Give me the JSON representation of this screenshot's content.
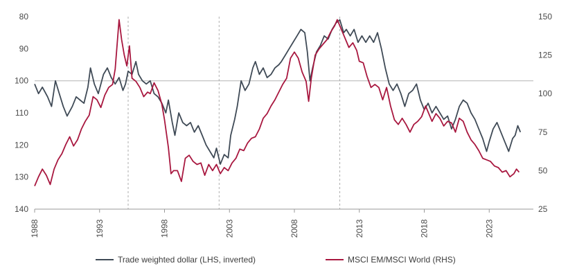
{
  "colors": {
    "dollar": "#3f4a56",
    "msci": "#a8173f",
    "axis": "#9a9a9a",
    "refline": "#bdbdbd",
    "marker": "#9a9a9a"
  },
  "legend": [
    {
      "label": "Trade weighted dollar (LHS, inverted)",
      "color": "#3f4a56"
    },
    {
      "label": "MSCI EM/MSCI World (RHS)",
      "color": "#a8173f"
    }
  ],
  "chart_data": {
    "type": "line",
    "title": "",
    "xlim": [
      1988,
      2026.4
    ],
    "x_ticks": [
      1988,
      1993,
      1998,
      2003,
      2008,
      2013,
      2018,
      2023
    ],
    "left_axis": {
      "ylim": [
        80,
        140
      ],
      "inverted": true,
      "ticks": [
        80,
        90,
        100,
        110,
        120,
        130,
        140
      ]
    },
    "right_axis": {
      "ylim": [
        25,
        150
      ],
      "ticks": [
        25,
        50,
        75,
        100,
        125,
        150
      ]
    },
    "reference_line": {
      "axis": "left",
      "value": 100
    },
    "vertical_markers": [
      1995.2,
      2002.2,
      2011.5
    ],
    "grid": false,
    "legend_position": "bottom",
    "series": [
      {
        "name": "Trade weighted dollar (LHS, inverted)",
        "axis": "left",
        "points": [
          [
            1988.0,
            101
          ],
          [
            1988.3,
            104
          ],
          [
            1988.6,
            102
          ],
          [
            1989.0,
            105
          ],
          [
            1989.3,
            108
          ],
          [
            1989.6,
            100
          ],
          [
            1989.9,
            104
          ],
          [
            1990.2,
            108
          ],
          [
            1990.5,
            111
          ],
          [
            1990.9,
            108
          ],
          [
            1991.2,
            105
          ],
          [
            1991.5,
            106
          ],
          [
            1991.8,
            107
          ],
          [
            1992.1,
            102
          ],
          [
            1992.3,
            96
          ],
          [
            1992.6,
            101
          ],
          [
            1992.9,
            104
          ],
          [
            1993.3,
            98
          ],
          [
            1993.6,
            96
          ],
          [
            1993.9,
            99
          ],
          [
            1994.2,
            101
          ],
          [
            1994.5,
            99
          ],
          [
            1994.8,
            103
          ],
          [
            1995.0,
            101
          ],
          [
            1995.2,
            97
          ],
          [
            1995.5,
            98
          ],
          [
            1995.8,
            94
          ],
          [
            1996.0,
            98
          ],
          [
            1996.3,
            100
          ],
          [
            1996.6,
            101
          ],
          [
            1996.9,
            100
          ],
          [
            1997.2,
            104
          ],
          [
            1997.5,
            105
          ],
          [
            1997.8,
            107
          ],
          [
            1998.1,
            110
          ],
          [
            1998.3,
            106
          ],
          [
            1998.6,
            113
          ],
          [
            1998.8,
            117
          ],
          [
            1999.1,
            110
          ],
          [
            1999.4,
            113
          ],
          [
            1999.7,
            114
          ],
          [
            2000.0,
            113
          ],
          [
            2000.3,
            116
          ],
          [
            2000.6,
            114
          ],
          [
            2000.9,
            117
          ],
          [
            2001.2,
            120
          ],
          [
            2001.5,
            122
          ],
          [
            2001.8,
            124
          ],
          [
            2002.0,
            121
          ],
          [
            2002.3,
            126
          ],
          [
            2002.6,
            123
          ],
          [
            2002.9,
            124
          ],
          [
            2003.1,
            117
          ],
          [
            2003.4,
            112
          ],
          [
            2003.6,
            108
          ],
          [
            2003.9,
            100
          ],
          [
            2004.2,
            103
          ],
          [
            2004.5,
            101
          ],
          [
            2004.8,
            96
          ],
          [
            2005.0,
            94
          ],
          [
            2005.3,
            98
          ],
          [
            2005.6,
            96
          ],
          [
            2005.9,
            99
          ],
          [
            2006.2,
            98
          ],
          [
            2006.5,
            96
          ],
          [
            2006.8,
            95
          ],
          [
            2007.0,
            94
          ],
          [
            2007.3,
            92
          ],
          [
            2007.6,
            90
          ],
          [
            2007.9,
            88
          ],
          [
            2008.2,
            86
          ],
          [
            2008.5,
            84
          ],
          [
            2008.8,
            85
          ],
          [
            2009.0,
            91
          ],
          [
            2009.2,
            100
          ],
          [
            2009.4,
            96
          ],
          [
            2009.7,
            91
          ],
          [
            2010.0,
            89
          ],
          [
            2010.3,
            86
          ],
          [
            2010.6,
            87
          ],
          [
            2010.9,
            84
          ],
          [
            2011.2,
            82
          ],
          [
            2011.5,
            81
          ],
          [
            2011.8,
            85
          ],
          [
            2012.0,
            84
          ],
          [
            2012.3,
            86
          ],
          [
            2012.6,
            84
          ],
          [
            2012.9,
            88
          ],
          [
            2013.2,
            86
          ],
          [
            2013.5,
            88
          ],
          [
            2013.8,
            86
          ],
          [
            2014.1,
            88
          ],
          [
            2014.4,
            85
          ],
          [
            2014.7,
            90
          ],
          [
            2015.0,
            96
          ],
          [
            2015.3,
            101
          ],
          [
            2015.6,
            103
          ],
          [
            2015.9,
            101
          ],
          [
            2016.2,
            104
          ],
          [
            2016.5,
            108
          ],
          [
            2016.8,
            104
          ],
          [
            2017.1,
            103
          ],
          [
            2017.4,
            101
          ],
          [
            2017.7,
            106
          ],
          [
            2018.0,
            109
          ],
          [
            2018.3,
            107
          ],
          [
            2018.6,
            110
          ],
          [
            2018.9,
            108
          ],
          [
            2019.2,
            110
          ],
          [
            2019.5,
            112
          ],
          [
            2019.8,
            111
          ],
          [
            2020.1,
            115
          ],
          [
            2020.4,
            112
          ],
          [
            2020.7,
            108
          ],
          [
            2021.0,
            106
          ],
          [
            2021.3,
            107
          ],
          [
            2021.6,
            110
          ],
          [
            2021.9,
            112
          ],
          [
            2022.2,
            115
          ],
          [
            2022.5,
            118
          ],
          [
            2022.8,
            122
          ],
          [
            2023.0,
            119
          ],
          [
            2023.3,
            115
          ],
          [
            2023.6,
            113
          ],
          [
            2023.9,
            116
          ],
          [
            2024.2,
            119
          ],
          [
            2024.5,
            122
          ],
          [
            2024.8,
            118
          ],
          [
            2025.0,
            117
          ],
          [
            2025.2,
            114
          ],
          [
            2025.4,
            116
          ]
        ]
      },
      {
        "name": "MSCI EM/MSCI World (RHS)",
        "axis": "right",
        "points": [
          [
            1988.0,
            40
          ],
          [
            1988.3,
            46
          ],
          [
            1988.6,
            51
          ],
          [
            1988.9,
            47
          ],
          [
            1989.2,
            41
          ],
          [
            1989.5,
            51
          ],
          [
            1989.8,
            57
          ],
          [
            1990.1,
            61
          ],
          [
            1990.4,
            67
          ],
          [
            1990.7,
            72
          ],
          [
            1991.0,
            66
          ],
          [
            1991.3,
            70
          ],
          [
            1991.6,
            77
          ],
          [
            1991.9,
            82
          ],
          [
            1992.2,
            86
          ],
          [
            1992.5,
            98
          ],
          [
            1992.8,
            96
          ],
          [
            1993.1,
            91
          ],
          [
            1993.4,
            99
          ],
          [
            1993.7,
            104
          ],
          [
            1994.0,
            106
          ],
          [
            1994.2,
            116
          ],
          [
            1994.5,
            148
          ],
          [
            1994.7,
            135
          ],
          [
            1994.9,
            125
          ],
          [
            1995.1,
            118
          ],
          [
            1995.3,
            131
          ],
          [
            1995.5,
            110
          ],
          [
            1995.8,
            108
          ],
          [
            1996.1,
            104
          ],
          [
            1996.4,
            98
          ],
          [
            1996.7,
            101
          ],
          [
            1996.9,
            100
          ],
          [
            1997.2,
            107
          ],
          [
            1997.5,
            102
          ],
          [
            1997.8,
            93
          ],
          [
            1998.0,
            83
          ],
          [
            1998.3,
            65
          ],
          [
            1998.5,
            48
          ],
          [
            1998.7,
            50
          ],
          [
            1999.0,
            50
          ],
          [
            1999.3,
            43
          ],
          [
            1999.6,
            58
          ],
          [
            1999.9,
            60
          ],
          [
            2000.2,
            56
          ],
          [
            2000.5,
            54
          ],
          [
            2000.8,
            55
          ],
          [
            2001.1,
            47
          ],
          [
            2001.4,
            54
          ],
          [
            2001.7,
            50
          ],
          [
            2002.0,
            54
          ],
          [
            2002.3,
            48
          ],
          [
            2002.6,
            52
          ],
          [
            2002.9,
            50
          ],
          [
            2003.2,
            55
          ],
          [
            2003.5,
            58
          ],
          [
            2003.8,
            64
          ],
          [
            2004.1,
            63
          ],
          [
            2004.4,
            68
          ],
          [
            2004.7,
            71
          ],
          [
            2005.0,
            72
          ],
          [
            2005.3,
            77
          ],
          [
            2005.6,
            84
          ],
          [
            2005.9,
            87
          ],
          [
            2006.2,
            92
          ],
          [
            2006.5,
            96
          ],
          [
            2006.8,
            101
          ],
          [
            2007.1,
            106
          ],
          [
            2007.4,
            110
          ],
          [
            2007.7,
            123
          ],
          [
            2008.0,
            127
          ],
          [
            2008.3,
            123
          ],
          [
            2008.6,
            114
          ],
          [
            2008.9,
            108
          ],
          [
            2009.1,
            95
          ],
          [
            2009.3,
            110
          ],
          [
            2009.6,
            125
          ],
          [
            2009.9,
            129
          ],
          [
            2010.2,
            132
          ],
          [
            2010.5,
            135
          ],
          [
            2010.8,
            140
          ],
          [
            2011.1,
            144
          ],
          [
            2011.3,
            148
          ],
          [
            2011.6,
            142
          ],
          [
            2011.9,
            136
          ],
          [
            2012.2,
            130
          ],
          [
            2012.5,
            133
          ],
          [
            2012.8,
            128
          ],
          [
            2013.0,
            121
          ],
          [
            2013.3,
            120
          ],
          [
            2013.6,
            111
          ],
          [
            2013.9,
            104
          ],
          [
            2014.2,
            106
          ],
          [
            2014.5,
            104
          ],
          [
            2014.8,
            96
          ],
          [
            2015.1,
            104
          ],
          [
            2015.4,
            92
          ],
          [
            2015.7,
            83
          ],
          [
            2016.0,
            80
          ],
          [
            2016.3,
            84
          ],
          [
            2016.6,
            80
          ],
          [
            2016.9,
            75
          ],
          [
            2017.2,
            80
          ],
          [
            2017.5,
            82
          ],
          [
            2017.8,
            85
          ],
          [
            2018.1,
            92
          ],
          [
            2018.3,
            88
          ],
          [
            2018.6,
            82
          ],
          [
            2018.9,
            87
          ],
          [
            2019.2,
            84
          ],
          [
            2019.5,
            79
          ],
          [
            2019.8,
            82
          ],
          [
            2020.1,
            81
          ],
          [
            2020.4,
            75
          ],
          [
            2020.7,
            84
          ],
          [
            2021.0,
            82
          ],
          [
            2021.3,
            75
          ],
          [
            2021.6,
            70
          ],
          [
            2021.9,
            67
          ],
          [
            2022.2,
            63
          ],
          [
            2022.5,
            58
          ],
          [
            2022.8,
            57
          ],
          [
            2023.1,
            56
          ],
          [
            2023.4,
            53
          ],
          [
            2023.7,
            52
          ],
          [
            2024.0,
            49
          ],
          [
            2024.3,
            50
          ],
          [
            2024.6,
            46
          ],
          [
            2024.9,
            48
          ],
          [
            2025.1,
            51
          ],
          [
            2025.3,
            49
          ]
        ]
      }
    ]
  }
}
